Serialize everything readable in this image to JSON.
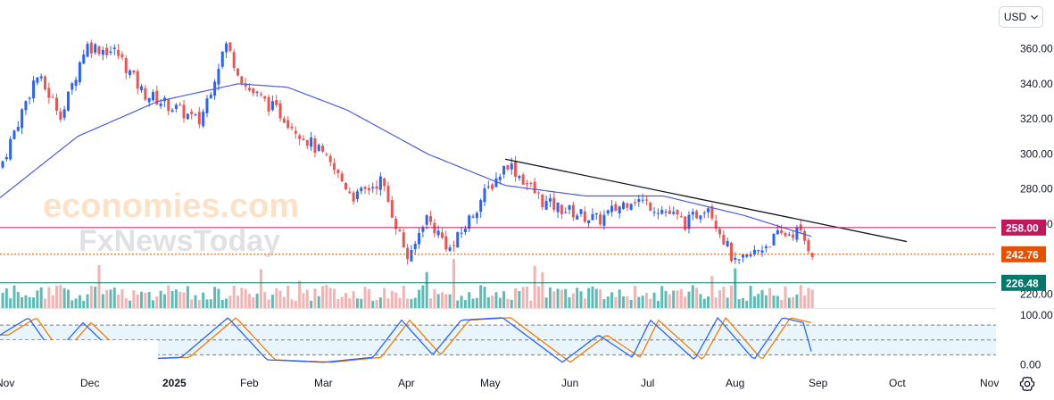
{
  "currency_selector": {
    "label": "USD"
  },
  "watermark": {
    "line1": "economies.com",
    "line2": "FxNewsToday"
  },
  "colors": {
    "up": "#2962ff",
    "down": "#ef5350",
    "ma": "#4c5cdb",
    "trendline": "#131722",
    "level_red": "#c2185b",
    "level_orange": "#e65100",
    "level_green": "#00796b",
    "stoch_k": "#2962ff",
    "stoch_d": "#f57c00"
  },
  "chart_data": {
    "type": "candlestick",
    "price_axis": {
      "ticks": [
        "360.00",
        "340.00",
        "320.00",
        "300.00",
        "280.00",
        "260.00",
        "220.00"
      ],
      "range": [
        218,
        372
      ]
    },
    "stoch_axis": {
      "ticks": [
        "100.00",
        "0.00"
      ],
      "range": [
        0,
        100
      ],
      "bands": [
        80,
        50,
        20
      ]
    },
    "time_axis": {
      "labels": [
        "Nov",
        "Dec",
        "2025",
        "Feb",
        "Mar",
        "Apr",
        "May",
        "Jun",
        "Jul",
        "Aug",
        "Sep",
        "Oct",
        "Nov"
      ]
    },
    "price_levels": [
      {
        "value": 258.0,
        "label": "258.00",
        "style": "solid",
        "color": "#c2185b"
      },
      {
        "value": 242.76,
        "label": "242.76",
        "style": "dotted",
        "color": "#e65100"
      },
      {
        "value": 226.48,
        "label": "226.48",
        "style": "solid",
        "color": "#00796b"
      }
    ],
    "trendline": {
      "from": {
        "date": "2025-05-15",
        "value": 297
      },
      "to": {
        "date": "2025-10-17",
        "value": 250
      }
    },
    "price_keyframes": [
      {
        "date": "2024-11-01",
        "value": 292
      },
      {
        "date": "2024-11-15",
        "value": 345
      },
      {
        "date": "2024-11-25",
        "value": 322
      },
      {
        "date": "2024-12-04",
        "value": 362
      },
      {
        "date": "2024-12-16",
        "value": 358
      },
      {
        "date": "2024-12-26",
        "value": 335
      },
      {
        "date": "2025-01-09",
        "value": 325
      },
      {
        "date": "2025-01-17",
        "value": 318
      },
      {
        "date": "2025-01-27",
        "value": 363
      },
      {
        "date": "2025-02-04",
        "value": 338
      },
      {
        "date": "2025-02-18",
        "value": 322
      },
      {
        "date": "2025-03-05",
        "value": 300
      },
      {
        "date": "2025-03-18",
        "value": 275
      },
      {
        "date": "2025-03-28",
        "value": 285
      },
      {
        "date": "2025-04-08",
        "value": 238
      },
      {
        "date": "2025-04-14",
        "value": 265
      },
      {
        "date": "2025-04-24",
        "value": 245
      },
      {
        "date": "2025-05-06",
        "value": 275
      },
      {
        "date": "2025-05-16",
        "value": 295
      },
      {
        "date": "2025-05-30",
        "value": 272
      },
      {
        "date": "2025-06-20",
        "value": 262
      },
      {
        "date": "2025-07-03",
        "value": 275
      },
      {
        "date": "2025-07-15",
        "value": 268
      },
      {
        "date": "2025-07-24",
        "value": 260
      },
      {
        "date": "2025-08-01",
        "value": 272
      },
      {
        "date": "2025-08-12",
        "value": 236
      },
      {
        "date": "2025-08-28",
        "value": 253
      },
      {
        "date": "2025-09-05",
        "value": 256
      },
      {
        "date": "2025-09-11",
        "value": 243
      }
    ],
    "ma_keyframes": [
      {
        "date": "2024-11-01",
        "value": 275
      },
      {
        "date": "2024-12-01",
        "value": 310
      },
      {
        "date": "2025-01-01",
        "value": 330
      },
      {
        "date": "2025-02-01",
        "value": 340
      },
      {
        "date": "2025-02-20",
        "value": 338
      },
      {
        "date": "2025-03-15",
        "value": 325
      },
      {
        "date": "2025-04-15",
        "value": 300
      },
      {
        "date": "2025-05-15",
        "value": 282
      },
      {
        "date": "2025-06-15",
        "value": 276
      },
      {
        "date": "2025-07-15",
        "value": 276
      },
      {
        "date": "2025-08-15",
        "value": 265
      },
      {
        "date": "2025-09-10",
        "value": 253
      }
    ],
    "stochastic_keyframes": [
      {
        "date": "2024-11-01",
        "k": 60
      },
      {
        "date": "2024-11-12",
        "k": 95
      },
      {
        "date": "2024-11-22",
        "k": 20
      },
      {
        "date": "2024-12-03",
        "k": 85
      },
      {
        "date": "2024-12-18",
        "k": 10
      },
      {
        "date": "2025-01-10",
        "k": 15
      },
      {
        "date": "2025-01-28",
        "k": 95
      },
      {
        "date": "2025-02-12",
        "k": 10
      },
      {
        "date": "2025-03-06",
        "k": 5
      },
      {
        "date": "2025-03-25",
        "k": 15
      },
      {
        "date": "2025-04-05",
        "k": 90
      },
      {
        "date": "2025-04-17",
        "k": 20
      },
      {
        "date": "2025-04-28",
        "k": 90
      },
      {
        "date": "2025-05-14",
        "k": 95
      },
      {
        "date": "2025-06-06",
        "k": 5
      },
      {
        "date": "2025-06-20",
        "k": 60
      },
      {
        "date": "2025-07-03",
        "k": 15
      },
      {
        "date": "2025-07-10",
        "k": 90
      },
      {
        "date": "2025-07-27",
        "k": 10
      },
      {
        "date": "2025-08-05",
        "k": 95
      },
      {
        "date": "2025-08-19",
        "k": 10
      },
      {
        "date": "2025-08-30",
        "k": 95
      },
      {
        "date": "2025-09-07",
        "k": 85
      },
      {
        "date": "2025-09-11",
        "k": 10
      }
    ]
  }
}
